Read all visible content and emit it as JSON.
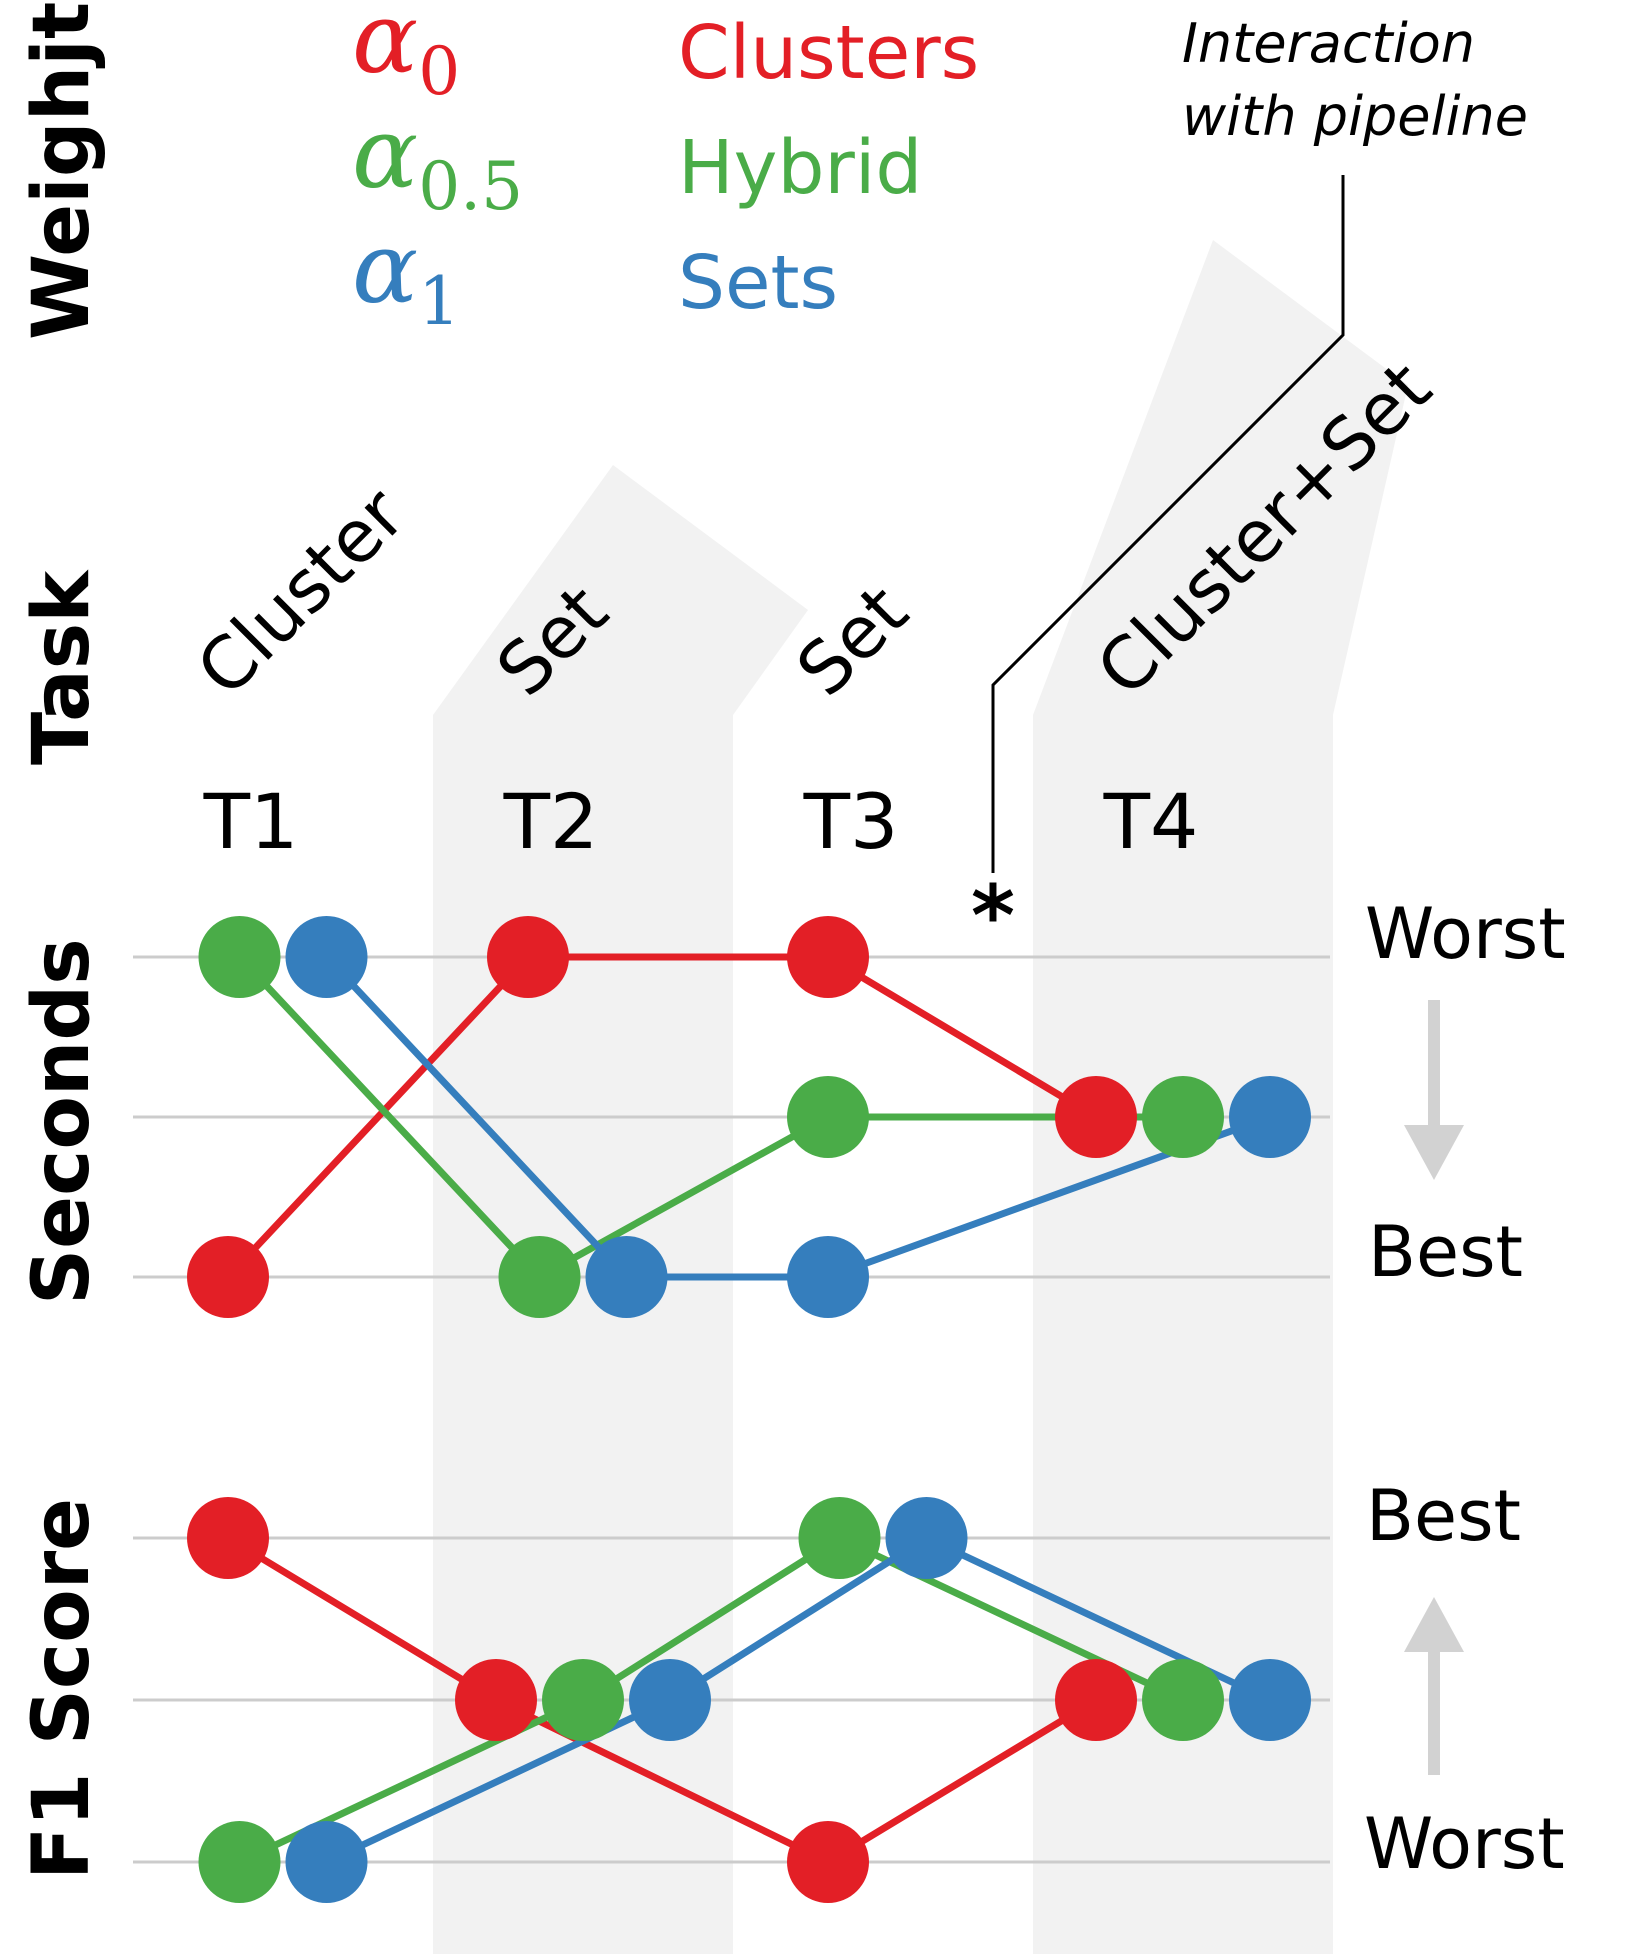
{
  "legend": {
    "heading": "Weighjt",
    "items": [
      {
        "symbol": "α",
        "subscript": "0",
        "label": "Clusters",
        "color": "#e31f26"
      },
      {
        "symbol": "α",
        "subscript": "0.5",
        "label": "Hybrid",
        "color": "#4aac48"
      },
      {
        "symbol": "α",
        "subscript": "1",
        "label": "Sets",
        "color": "#357ebd"
      }
    ]
  },
  "annotation": {
    "line1": "Interaction",
    "line2": "with pipeline",
    "marker": "*"
  },
  "task_heading": "Task",
  "tasks": [
    {
      "id": "T1",
      "type": "Cluster",
      "shaded": false
    },
    {
      "id": "T2",
      "type": "Set",
      "shaded": true
    },
    {
      "id": "T3",
      "type": "Set",
      "shaded": false
    },
    {
      "id": "T4",
      "type": "Cluster+Set",
      "shaded": true
    }
  ],
  "colors": {
    "Clusters": "#e31f26",
    "Hybrid": "#4aac48",
    "Sets": "#357ebd",
    "shade": "#f2f2f2",
    "grid": "#cccccc",
    "arrow": "#d2d2d2"
  },
  "chart_data": [
    {
      "type": "line",
      "ylabel": "Seconds",
      "rank_levels": 3,
      "top_label": "Worst",
      "bottom_label": "Best",
      "arrow": "down",
      "categories": [
        "T1",
        "T2",
        "T3",
        "T4"
      ],
      "series": [
        {
          "name": "Clusters",
          "values": [
            3,
            1,
            1,
            2
          ]
        },
        {
          "name": "Hybrid",
          "values": [
            1,
            3,
            2,
            2
          ]
        },
        {
          "name": "Sets",
          "values": [
            1,
            3,
            3,
            2
          ]
        }
      ]
    },
    {
      "type": "line",
      "ylabel": "F1 Score",
      "rank_levels": 3,
      "top_label": "Best",
      "bottom_label": "Worst",
      "arrow": "up",
      "categories": [
        "T1",
        "T2",
        "T3",
        "T4"
      ],
      "series": [
        {
          "name": "Clusters",
          "values": [
            1,
            2,
            3,
            2
          ]
        },
        {
          "name": "Hybrid",
          "values": [
            3,
            2,
            1,
            2
          ]
        },
        {
          "name": "Sets",
          "values": [
            3,
            2,
            1,
            2
          ]
        }
      ]
    }
  ]
}
